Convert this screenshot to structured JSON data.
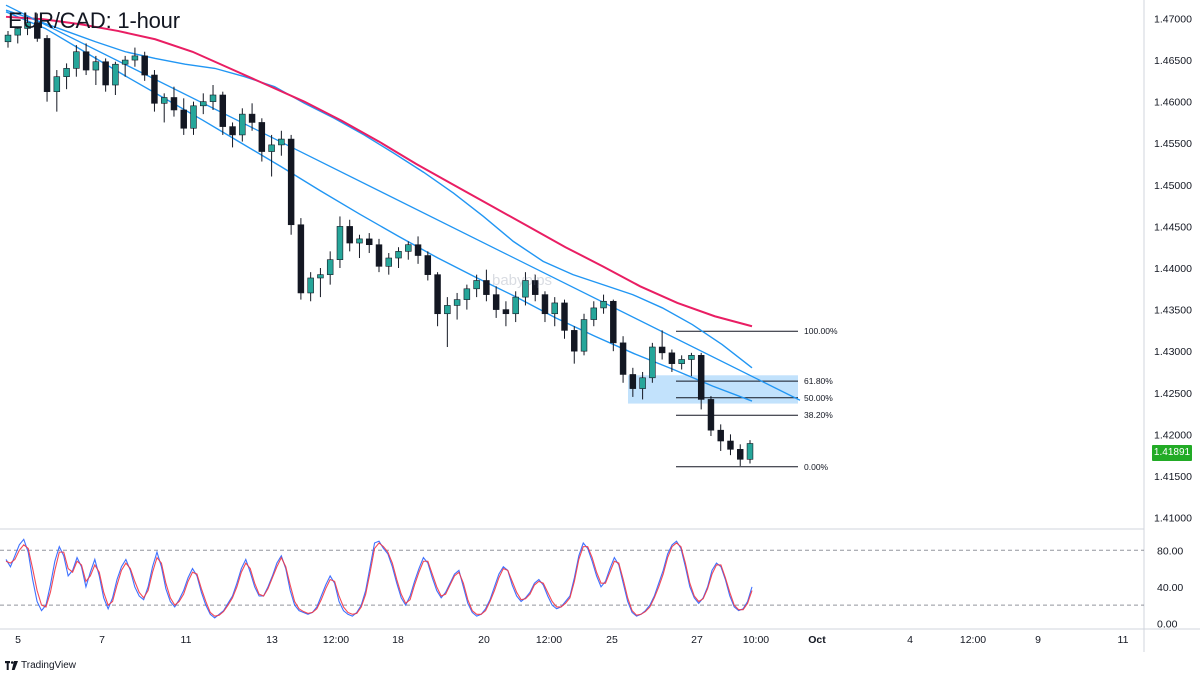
{
  "title": "EUR/CAD: 1-hour",
  "watermark": "babypips",
  "brand": "TradingView",
  "colors": {
    "up": "#26a69a",
    "down": "#131722",
    "ema_fast": "#2196f3",
    "ema_mid": "#2196f3",
    "ema_slow": "#e91e63",
    "stoch_k": "#2962ff",
    "stoch_d": "#f23645",
    "zone": "#90caf9",
    "badge": "#22ab26"
  },
  "last_price": "1.41891",
  "chart_data": [
    {
      "type": "candlestick",
      "title": "EUR/CAD: 1-hour",
      "y_ticks": [
        "1.47000",
        "1.46500",
        "1.46000",
        "1.45500",
        "1.45000",
        "1.44500",
        "1.44000",
        "1.43500",
        "1.43000",
        "1.42500",
        "1.42000",
        "1.41500",
        "1.41000"
      ],
      "ylim": [
        1.4085,
        1.4715
      ],
      "x_ticks": [
        "5",
        "7",
        "11",
        "13",
        "12:00",
        "18",
        "20",
        "12:00",
        "25",
        "27",
        "10:00",
        "Oct",
        "4",
        "12:00",
        "9",
        "11"
      ],
      "x_ticks_bold": [
        "Oct"
      ],
      "candles": [
        [
          1.4672,
          1.4685,
          1.4665,
          1.468
        ],
        [
          1.468,
          1.469,
          1.467,
          1.4688
        ],
        [
          1.4688,
          1.4702,
          1.468,
          1.4695
        ],
        [
          1.4695,
          1.4706,
          1.4672,
          1.4676
        ],
        [
          1.4676,
          1.468,
          1.46,
          1.4612
        ],
        [
          1.4612,
          1.4638,
          1.4588,
          1.463
        ],
        [
          1.463,
          1.4646,
          1.4615,
          1.464
        ],
        [
          1.464,
          1.4668,
          1.463,
          1.466
        ],
        [
          1.466,
          1.467,
          1.4632,
          1.4638
        ],
        [
          1.4638,
          1.4655,
          1.462,
          1.4648
        ],
        [
          1.4648,
          1.4652,
          1.4612,
          1.462
        ],
        [
          1.462,
          1.4648,
          1.4608,
          1.4645
        ],
        [
          1.4645,
          1.4655,
          1.463,
          1.465
        ],
        [
          1.465,
          1.4665,
          1.4642,
          1.4655
        ],
        [
          1.4655,
          1.466,
          1.4625,
          1.4632
        ],
        [
          1.4632,
          1.4638,
          1.4588,
          1.4598
        ],
        [
          1.4598,
          1.461,
          1.4575,
          1.4605
        ],
        [
          1.4605,
          1.4618,
          1.4582,
          1.459
        ],
        [
          1.459,
          1.4604,
          1.456,
          1.4568
        ],
        [
          1.4568,
          1.46,
          1.456,
          1.4595
        ],
        [
          1.4595,
          1.461,
          1.4585,
          1.46
        ],
        [
          1.46,
          1.462,
          1.459,
          1.4608
        ],
        [
          1.4608,
          1.4612,
          1.456,
          1.457
        ],
        [
          1.457,
          1.4575,
          1.4545,
          1.456
        ],
        [
          1.456,
          1.4592,
          1.4552,
          1.4585
        ],
        [
          1.4585,
          1.4598,
          1.4565,
          1.4575
        ],
        [
          1.4575,
          1.458,
          1.4528,
          1.454
        ],
        [
          1.454,
          1.456,
          1.451,
          1.4548
        ],
        [
          1.4548,
          1.4565,
          1.4535,
          1.4555
        ],
        [
          1.4555,
          1.456,
          1.444,
          1.4452
        ],
        [
          1.4452,
          1.446,
          1.4362,
          1.437
        ],
        [
          1.437,
          1.4395,
          1.436,
          1.4388
        ],
        [
          1.4388,
          1.44,
          1.4365,
          1.4392
        ],
        [
          1.4392,
          1.442,
          1.438,
          1.441
        ],
        [
          1.441,
          1.4462,
          1.44,
          1.445
        ],
        [
          1.445,
          1.4458,
          1.442,
          1.443
        ],
        [
          1.443,
          1.444,
          1.4412,
          1.4435
        ],
        [
          1.4435,
          1.4442,
          1.4418,
          1.4428
        ],
        [
          1.4428,
          1.4435,
          1.4395,
          1.4402
        ],
        [
          1.4402,
          1.4418,
          1.4392,
          1.4412
        ],
        [
          1.4412,
          1.4425,
          1.44,
          1.442
        ],
        [
          1.442,
          1.4432,
          1.441,
          1.4428
        ],
        [
          1.4428,
          1.4438,
          1.4405,
          1.4415
        ],
        [
          1.4415,
          1.442,
          1.4385,
          1.4392
        ],
        [
          1.4392,
          1.4395,
          1.433,
          1.4345
        ],
        [
          1.4345,
          1.4365,
          1.4305,
          1.4355
        ],
        [
          1.4355,
          1.437,
          1.4338,
          1.4362
        ],
        [
          1.4362,
          1.438,
          1.435,
          1.4375
        ],
        [
          1.4375,
          1.4392,
          1.4365,
          1.4385
        ],
        [
          1.4385,
          1.4398,
          1.436,
          1.4368
        ],
        [
          1.4368,
          1.4378,
          1.434,
          1.435
        ],
        [
          1.435,
          1.436,
          1.433,
          1.4345
        ],
        [
          1.4345,
          1.4372,
          1.4335,
          1.4365
        ],
        [
          1.4365,
          1.4395,
          1.4355,
          1.4385
        ],
        [
          1.4385,
          1.4392,
          1.436,
          1.4368
        ],
        [
          1.4368,
          1.4372,
          1.4335,
          1.4345
        ],
        [
          1.4345,
          1.4365,
          1.433,
          1.4358
        ],
        [
          1.4358,
          1.4362,
          1.4315,
          1.4325
        ],
        [
          1.4325,
          1.433,
          1.4285,
          1.43
        ],
        [
          1.43,
          1.4345,
          1.4295,
          1.4338
        ],
        [
          1.4338,
          1.436,
          1.433,
          1.4352
        ],
        [
          1.4352,
          1.4368,
          1.4345,
          1.436
        ],
        [
          1.436,
          1.4362,
          1.43,
          1.431
        ],
        [
          1.431,
          1.4318,
          1.4262,
          1.4272
        ],
        [
          1.4272,
          1.428,
          1.4245,
          1.4255
        ],
        [
          1.4255,
          1.4275,
          1.4242,
          1.4268
        ],
        [
          1.4268,
          1.431,
          1.4262,
          1.4305
        ],
        [
          1.4305,
          1.4325,
          1.429,
          1.4298
        ],
        [
          1.4298,
          1.4302,
          1.4275,
          1.4285
        ],
        [
          1.4285,
          1.4295,
          1.4278,
          1.429
        ],
        [
          1.429,
          1.4298,
          1.427,
          1.4295
        ],
        [
          1.4295,
          1.4298,
          1.423,
          1.4242
        ],
        [
          1.4242,
          1.4246,
          1.4198,
          1.4205
        ],
        [
          1.4205,
          1.4212,
          1.418,
          1.4192
        ],
        [
          1.4192,
          1.42,
          1.4175,
          1.4182
        ],
        [
          1.4182,
          1.4188,
          1.4162,
          1.417
        ],
        [
          1.417,
          1.4193,
          1.4165,
          1.4189
        ]
      ],
      "series": [
        {
          "name": "EMA fast",
          "color": "#2196f3",
          "values": [
            1.471,
            1.4698,
            1.4685,
            1.4672,
            1.466,
            1.4652,
            1.4645,
            1.464,
            1.463,
            1.4618,
            1.4598,
            1.458,
            1.456,
            1.4538,
            1.4515,
            1.449,
            1.4462,
            1.4432,
            1.4408,
            1.4392,
            1.438,
            1.4368,
            1.4352,
            1.4332,
            1.4308,
            1.428
          ]
        },
        {
          "name": "EMA mid",
          "color": "#2196f3",
          "values": [
            1.4708,
            1.4688,
            1.466,
            1.4632,
            1.4605,
            1.4578,
            1.455,
            1.4522,
            1.4493,
            1.4465,
            1.4438,
            1.4412,
            1.4388,
            1.4365,
            1.434,
            1.4318,
            1.4297,
            1.4278,
            1.4258,
            1.424
          ]
        },
        {
          "name": "EMA slow",
          "color": "#e91e63",
          "values": [
            1.4702,
            1.4699,
            1.4693,
            1.4685,
            1.4675,
            1.466,
            1.464,
            1.462,
            1.46,
            1.4577,
            1.4552,
            1.4525,
            1.45,
            1.4475,
            1.445,
            1.4425,
            1.4402,
            1.4378,
            1.4358,
            1.4342,
            1.433
          ]
        }
      ],
      "fibonacci": {
        "levels": [
          {
            "label": "100.00%",
            "price": 1.4324
          },
          {
            "label": "61.80%",
            "price": 1.4264
          },
          {
            "label": "50.00%",
            "price": 1.4244
          },
          {
            "label": "38.20%",
            "price": 1.4223
          },
          {
            "label": "0.00%",
            "price": 1.4161
          }
        ],
        "zone": {
          "top": 1.4271,
          "bottom": 1.4237
        }
      },
      "trendline": {
        "from": [
          1.4716,
          0
        ],
        "to": [
          1.4241,
          1
        ]
      }
    },
    {
      "type": "line",
      "title": "",
      "y_ticks": [
        "80.00",
        "40.00",
        "0.00"
      ],
      "ylim": [
        -5,
        100
      ],
      "levels": [
        80,
        20
      ],
      "series": [
        {
          "name": "%K",
          "color": "#2962ff",
          "values": [
            70,
            62,
            74,
            86,
            92,
            78,
            48,
            24,
            14,
            20,
            42,
            68,
            84,
            74,
            52,
            58,
            72,
            62,
            40,
            56,
            70,
            52,
            28,
            16,
            28,
            48,
            62,
            70,
            58,
            40,
            30,
            26,
            40,
            62,
            78,
            62,
            38,
            24,
            18,
            26,
            36,
            50,
            60,
            52,
            34,
            20,
            10,
            6,
            10,
            14,
            22,
            30,
            44,
            60,
            70,
            56,
            40,
            30,
            30,
            40,
            52,
            66,
            74,
            60,
            36,
            20,
            14,
            12,
            10,
            12,
            18,
            30,
            42,
            52,
            44,
            24,
            14,
            10,
            8,
            12,
            20,
            36,
            62,
            88,
            90,
            82,
            76,
            62,
            44,
            28,
            20,
            30,
            46,
            60,
            72,
            66,
            50,
            36,
            28,
            34,
            44,
            54,
            58,
            40,
            22,
            12,
            8,
            10,
            16,
            26,
            40,
            54,
            62,
            58,
            42,
            30,
            24,
            28,
            34,
            44,
            48,
            42,
            30,
            20,
            16,
            18,
            24,
            30,
            50,
            74,
            88,
            82,
            68,
            52,
            40,
            46,
            60,
            72,
            64,
            44,
            24,
            12,
            8,
            10,
            14,
            20,
            30,
            44,
            58,
            76,
            86,
            90,
            82,
            62,
            40,
            28,
            22,
            28,
            40,
            58,
            66,
            62,
            48,
            30,
            18,
            14,
            16,
            24,
            40
          ]
        },
        {
          "name": "%D",
          "color": "#f23645",
          "values": [
            68,
            66,
            70,
            80,
            86,
            82,
            60,
            36,
            20,
            18,
            34,
            58,
            78,
            78,
            60,
            56,
            68,
            64,
            46,
            52,
            64,
            56,
            34,
            20,
            24,
            42,
            58,
            66,
            60,
            46,
            34,
            28,
            36,
            56,
            72,
            66,
            44,
            28,
            20,
            24,
            32,
            46,
            56,
            54,
            38,
            24,
            12,
            8,
            9,
            13,
            20,
            28,
            40,
            56,
            66,
            60,
            44,
            32,
            30,
            38,
            50,
            62,
            72,
            62,
            42,
            24,
            16,
            13,
            11,
            12,
            16,
            26,
            38,
            48,
            46,
            30,
            18,
            12,
            10,
            11,
            18,
            32,
            56,
            82,
            88,
            84,
            78,
            66,
            48,
            32,
            22,
            26,
            42,
            56,
            68,
            68,
            54,
            40,
            30,
            32,
            42,
            52,
            56,
            44,
            26,
            14,
            10,
            10,
            14,
            24,
            36,
            50,
            60,
            58,
            46,
            34,
            26,
            27,
            32,
            42,
            46,
            44,
            34,
            24,
            18,
            18,
            22,
            28,
            46,
            70,
            84,
            84,
            72,
            56,
            44,
            44,
            56,
            68,
            66,
            48,
            28,
            14,
            9,
            10,
            13,
            18,
            28,
            40,
            54,
            72,
            84,
            88,
            84,
            66,
            44,
            30,
            24,
            27,
            38,
            54,
            64,
            64,
            50,
            34,
            20,
            15,
            15,
            22,
            36
          ]
        }
      ]
    }
  ]
}
